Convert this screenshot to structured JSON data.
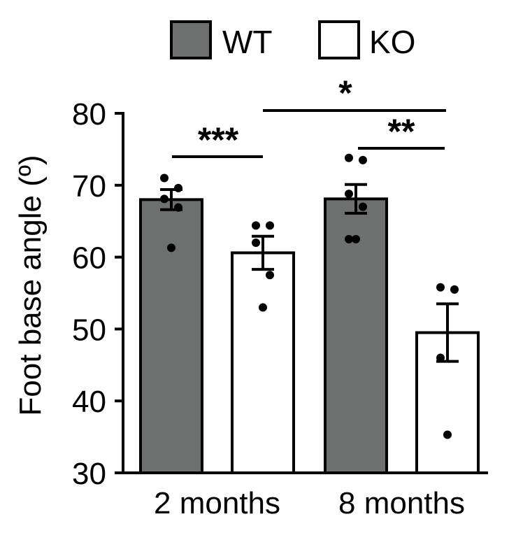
{
  "chart_data": {
    "type": "bar",
    "ylabel": "Foot base angle (º)",
    "xlabel": "",
    "ylim": [
      30,
      80
    ],
    "yticks": [
      30,
      40,
      50,
      60,
      70,
      80
    ],
    "categories": [
      "2 months",
      "8 months"
    ],
    "legend_position": "top",
    "series": [
      {
        "name": "WT",
        "color": "#6e6f6f",
        "values": [
          68.0,
          68.1
        ],
        "errors": [
          1.4,
          2.0
        ],
        "points": [
          [
            71.0,
            69.6,
            68.1,
            66.9,
            61.3
          ],
          [
            73.8,
            73.5,
            68.8,
            67.0,
            62.5,
            62.5
          ]
        ]
      },
      {
        "name": "KO",
        "color": "#ffffff",
        "values": [
          60.6,
          49.5
        ],
        "errors": [
          2.3,
          4.0
        ],
        "points": [
          [
            64.4,
            64.4,
            62.0,
            57.5,
            53.0
          ],
          [
            55.8,
            55.5,
            46.0,
            35.3
          ]
        ]
      }
    ],
    "significance": [
      {
        "label": "***",
        "between": [
          "2 months WT",
          "2 months KO"
        ]
      },
      {
        "label": "**",
        "between": [
          "8 months WT",
          "8 months KO"
        ]
      },
      {
        "label": "*",
        "between": [
          "2 months KO",
          "8 months KO"
        ]
      }
    ]
  }
}
